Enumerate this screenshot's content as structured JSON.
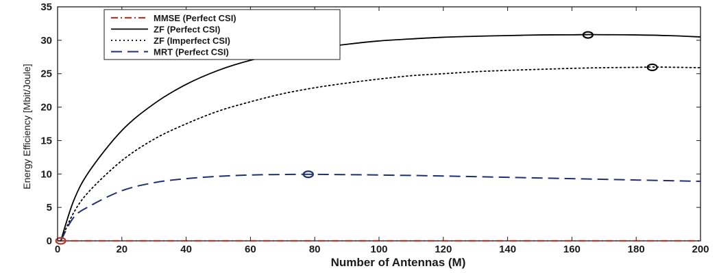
{
  "chart_data": {
    "type": "line",
    "xlabel": "Number of Antennas (M)",
    "ylabel": "Energy Efficiency [Mbit/Joule]",
    "xlim": [
      0,
      200
    ],
    "ylim": [
      0,
      35
    ],
    "xticks": [
      0,
      20,
      40,
      60,
      80,
      100,
      120,
      140,
      160,
      180,
      200
    ],
    "yticks": [
      0,
      5,
      10,
      15,
      20,
      25,
      30,
      35
    ],
    "grid": false,
    "legend_position": "top-left",
    "series": [
      {
        "name": "MMSE (Perfect CSI)",
        "color": "#b03a2e",
        "style": "dash-dot",
        "x": [
          0,
          200
        ],
        "y": [
          0,
          0
        ],
        "marker": {
          "x": 1,
          "y": 0
        }
      },
      {
        "name": "ZF (Perfect CSI)",
        "color": "#000000",
        "style": "solid",
        "x": [
          1,
          5,
          10,
          20,
          30,
          40,
          50,
          60,
          70,
          80,
          90,
          100,
          110,
          120,
          130,
          140,
          150,
          160,
          165,
          170,
          180,
          190,
          200
        ],
        "y": [
          0,
          6,
          10.5,
          16.5,
          20.5,
          23.4,
          25.5,
          27,
          28,
          28.8,
          29.4,
          29.9,
          30.2,
          30.45,
          30.6,
          30.7,
          30.8,
          30.82,
          30.85,
          30.83,
          30.8,
          30.7,
          30.5
        ],
        "marker": {
          "x": 165,
          "y": 30.8
        }
      },
      {
        "name": "ZF (Imperfect CSI)",
        "color": "#000000",
        "style": "dotted",
        "x": [
          1,
          5,
          10,
          20,
          30,
          40,
          50,
          60,
          70,
          80,
          90,
          100,
          110,
          120,
          130,
          140,
          150,
          160,
          170,
          180,
          185,
          190,
          200
        ],
        "y": [
          0,
          4.2,
          7.5,
          12,
          15.2,
          17.5,
          19.4,
          20.8,
          22,
          22.9,
          23.6,
          24.2,
          24.7,
          25,
          25.3,
          25.5,
          25.65,
          25.8,
          25.9,
          25.95,
          26,
          25.97,
          25.9
        ],
        "marker": {
          "x": 185,
          "y": 25.95
        }
      },
      {
        "name": "MRT (Perfect CSI)",
        "color": "#1f2f6e",
        "style": "dashed",
        "x": [
          1,
          5,
          10,
          20,
          30,
          40,
          50,
          60,
          70,
          78,
          90,
          100,
          120,
          140,
          160,
          180,
          200
        ],
        "y": [
          0,
          3.5,
          5.2,
          7.5,
          8.7,
          9.3,
          9.65,
          9.85,
          9.92,
          9.95,
          9.9,
          9.85,
          9.7,
          9.5,
          9.3,
          9.1,
          8.9
        ],
        "marker": {
          "x": 78,
          "y": 9.95
        }
      }
    ]
  }
}
